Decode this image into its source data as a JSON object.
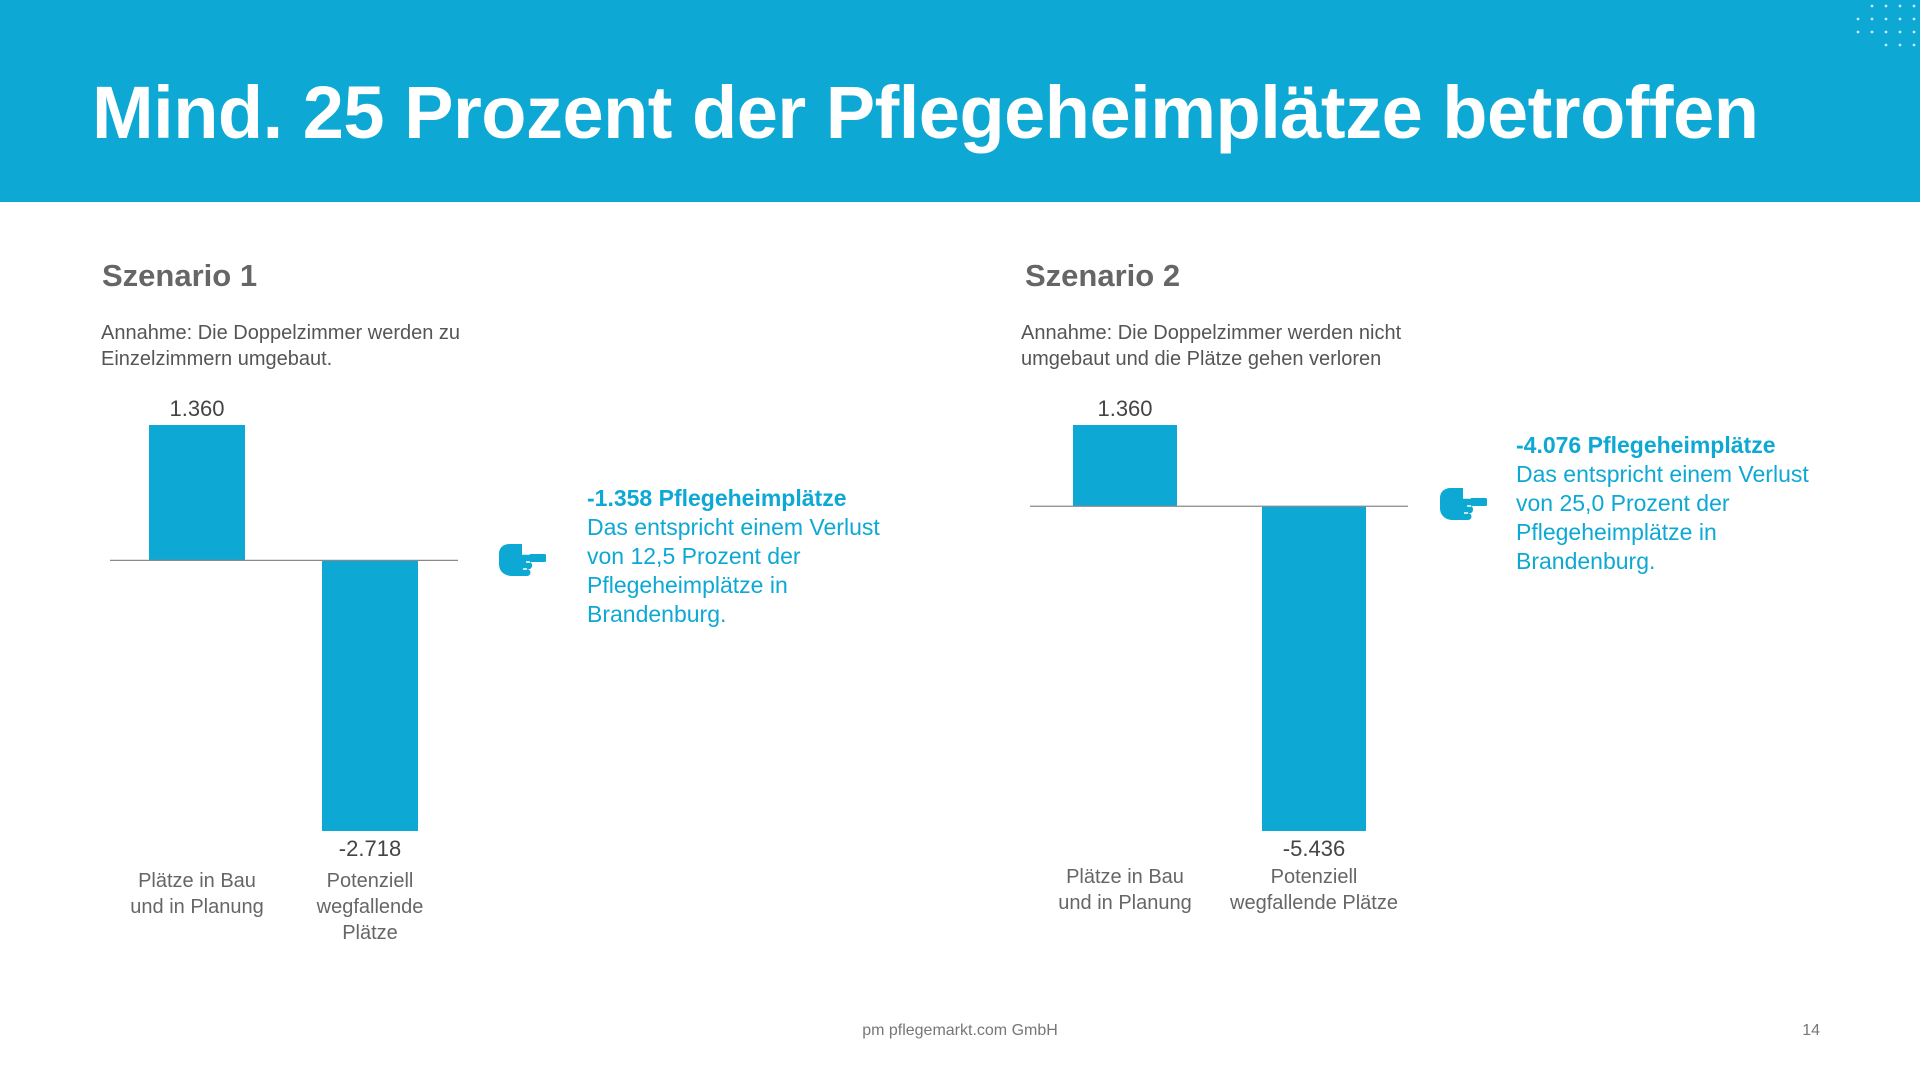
{
  "header": {
    "title": "Mind. 25 Prozent der Pflegeheimplätze betroffen"
  },
  "colors": {
    "accent": "#0ea8d4",
    "header_bg": "#0ea8d4",
    "bar": "#0ea8d4",
    "text_gray": "#666666"
  },
  "icons": {
    "pointer": "pointing-hand-icon",
    "decoration": "dot-grid-icon"
  },
  "scenarios": [
    {
      "title": "Szenario 1",
      "assumption": "Annahme: Die Doppelzimmer werden zu Einzelzimmern umgebaut.",
      "callout": {
        "headline": "-1.358 Pflegeheimplätze",
        "text": "Das entspricht einem Verlust von 12,5 Prozent der Pflegeheimplätze in Brandenburg."
      }
    },
    {
      "title": "Szenario 2",
      "assumption": "Annahme: Die Doppelzimmer werden nicht umgebaut und die Plätze gehen verloren",
      "callout": {
        "headline": "-4.076 Pflegeheimplätze",
        "text": "Das entspricht einem Verlust von 25,0 Prozent der Pflegeheimplätze in Brandenburg."
      }
    }
  ],
  "chart_data": [
    {
      "type": "bar",
      "title": "Szenario 1",
      "categories": [
        "Plätze in Bau und in Planung",
        "Potenziell wegfallende Plätze"
      ],
      "category_lines": [
        [
          "Plätze in Bau",
          "und in Planung"
        ],
        [
          "Potenziell",
          "wegfallende",
          "Plätze"
        ]
      ],
      "values": [
        1360,
        -2718
      ],
      "value_labels": [
        "1.360",
        "-2.718"
      ],
      "ylim": [
        -2718,
        1360
      ]
    },
    {
      "type": "bar",
      "title": "Szenario 2",
      "categories": [
        "Plätze in Bau und in Planung",
        "Potenziell wegfallende Plätze"
      ],
      "category_lines": [
        [
          "Plätze in Bau",
          "und in Planung"
        ],
        [
          "Potenziell",
          "wegfallende Plätze"
        ]
      ],
      "values": [
        1360,
        -5436
      ],
      "value_labels": [
        "1.360",
        "-5.436"
      ],
      "ylim": [
        -5436,
        1360
      ]
    }
  ],
  "footer": {
    "company": "pm pflegemarkt.com GmbH",
    "page_number": "14"
  }
}
